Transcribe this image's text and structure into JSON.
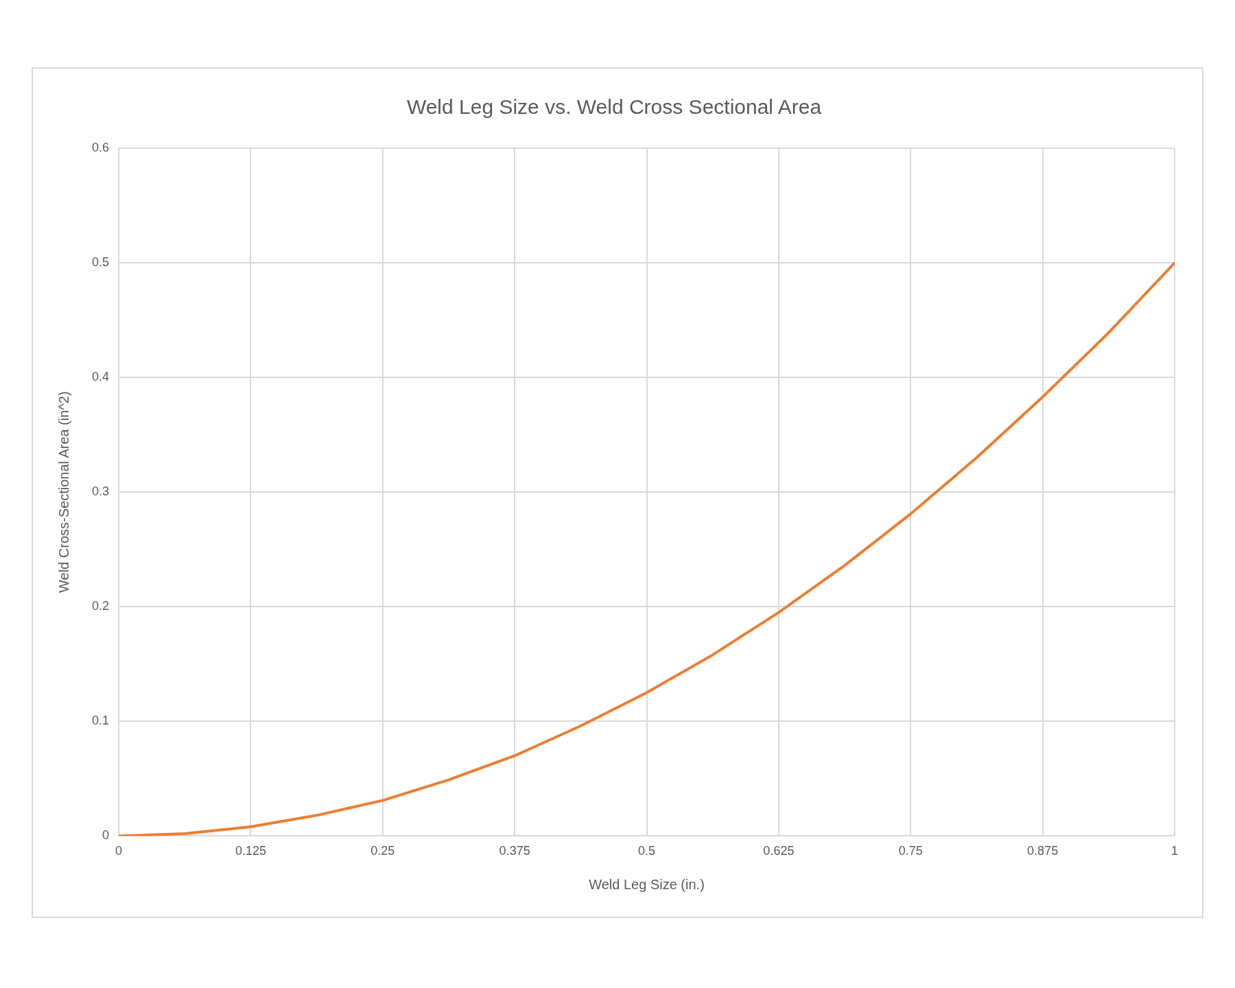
{
  "chart_data": {
    "type": "line",
    "title": "Weld Leg Size vs. Weld Cross Sectional Area",
    "xlabel": "Weld Leg Size (in.)",
    "ylabel": "Weld Cross-Sectional Area (in^2)",
    "x": [
      0,
      0.0625,
      0.125,
      0.1875,
      0.25,
      0.3125,
      0.375,
      0.4375,
      0.5,
      0.5625,
      0.625,
      0.6875,
      0.75,
      0.8125,
      0.875,
      0.9375,
      1
    ],
    "series": [
      {
        "color": "#ed7d31",
        "values": [
          0,
          0.002,
          0.008,
          0.018,
          0.031,
          0.049,
          0.07,
          0.096,
          0.125,
          0.158,
          0.195,
          0.236,
          0.281,
          0.33,
          0.383,
          0.439,
          0.5
        ]
      }
    ],
    "xlim": [
      0,
      1
    ],
    "xticks": [
      0,
      0.125,
      0.25,
      0.375,
      0.5,
      0.625,
      0.75,
      0.875,
      1
    ],
    "ylim": [
      0,
      0.6
    ],
    "yticks": [
      0,
      0.1,
      0.2,
      0.3,
      0.4,
      0.5,
      0.6
    ],
    "grid": true,
    "marker": "none",
    "line_style": "solid"
  }
}
